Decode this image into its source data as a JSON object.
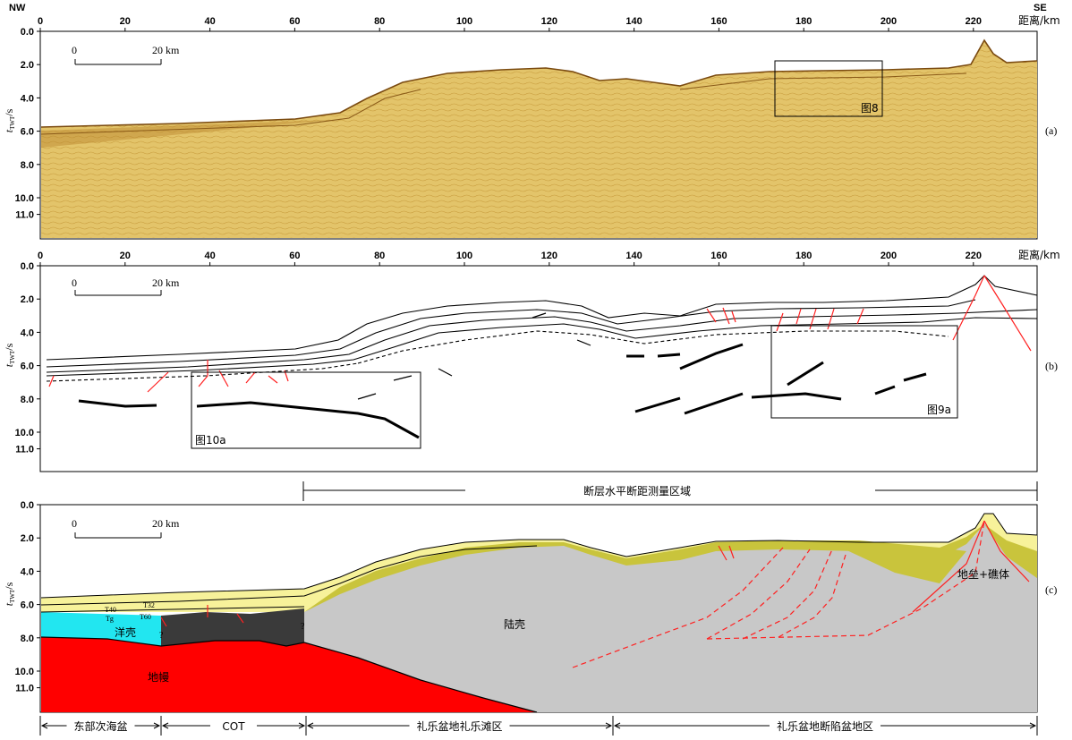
{
  "figure": {
    "orientation": {
      "left": "NW",
      "right": "SE"
    },
    "distance_axis_label": "距离/km",
    "time_axis_label": "tTWT/s",
    "time_axis_label_main": "t",
    "time_axis_label_sub": "TWT",
    "time_axis_label_unit": "/s",
    "distance_ticks": [
      "0",
      "20",
      "40",
      "60",
      "80",
      "100",
      "120",
      "140",
      "160",
      "180",
      "200",
      "220"
    ],
    "time_ticks": [
      "0.0",
      "2.0",
      "4.0",
      "6.0",
      "8.0",
      "10.0",
      "11.0"
    ],
    "scale_bar": {
      "start": "0",
      "end": "20 km"
    },
    "colors": {
      "seismic": "#e2c266",
      "sediment_light": "#f7f29a",
      "sediment_dark": "#c9c43c",
      "continental_crust": "#c8c8c8",
      "oceanic_crust": "#22e6f0",
      "cot": "#3a3a3a",
      "mantle": "#ff0000",
      "fault": "#ff3030"
    }
  },
  "panels": {
    "a": {
      "tag": "(a)",
      "box_label": "图8"
    },
    "b": {
      "tag": "(b)",
      "box_left_label": "图10a",
      "box_right_label": "图9a"
    },
    "c": {
      "tag": "(c)",
      "region_label": "断层水平断距测量区域",
      "labels": {
        "oceanic": "洋壳",
        "continental": "陆壳",
        "mantle": "地幔",
        "horst": "地垒+礁体",
        "t32": "T32",
        "t40": "T40",
        "tg": "Tg",
        "t60": "T60",
        "question": "?"
      },
      "zones": [
        "东部次海盆",
        "COT",
        "礼乐盆地礼乐滩区",
        "礼乐盆地断陷盆地区"
      ]
    }
  }
}
